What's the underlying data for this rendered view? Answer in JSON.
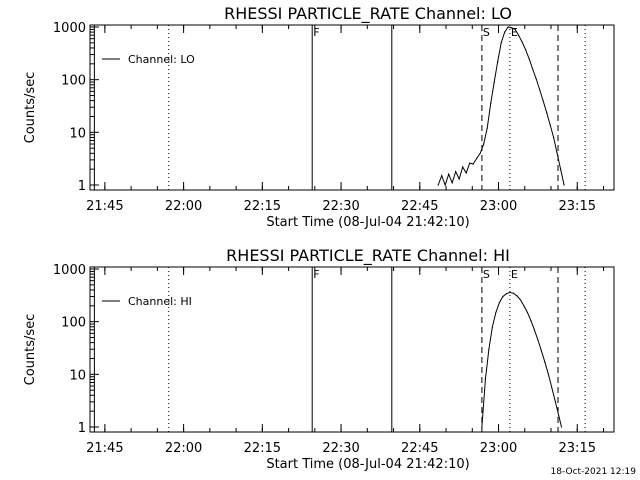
{
  "timestamp": "18-Oct-2021 12:19",
  "chart_data": [
    {
      "type": "line",
      "title": "RHESSI PARTICLE_RATE Channel: LO",
      "xlabel": "Start Time (08-Jul-04 21:42:10)",
      "ylabel": "Counts/sec",
      "yscale": "log",
      "ylim": [
        1,
        1000
      ],
      "xlim": [
        "21:42:10",
        "23:22:00"
      ],
      "xticks": [
        "21:45",
        "22:00",
        "22:15",
        "22:30",
        "22:45",
        "23:00",
        "23:15"
      ],
      "yticks": [
        "1",
        "10",
        "100",
        "1000"
      ],
      "legend": {
        "position": "top-left",
        "entries": [
          "Channel: LO"
        ]
      },
      "markers": [
        {
          "time": "21:43:00",
          "style": "solid",
          "label": ""
        },
        {
          "time": "21:57:10",
          "style": "dotted",
          "label": ""
        },
        {
          "time": "22:24:30",
          "style": "solid",
          "label": "F"
        },
        {
          "time": "22:39:40",
          "style": "solid",
          "label": ""
        },
        {
          "time": "22:56:50",
          "style": "dashed",
          "label": "S"
        },
        {
          "time": "23:02:10",
          "style": "dotted",
          "label": "E"
        },
        {
          "time": "23:11:20",
          "style": "dashed",
          "label": ""
        },
        {
          "time": "23:16:30",
          "style": "dotted",
          "label": ""
        }
      ],
      "series": [
        {
          "name": "Channel: LO",
          "x": [
            "22:48:30",
            "22:49:10",
            "22:49:50",
            "22:50:30",
            "22:51:10",
            "22:51:50",
            "22:52:30",
            "22:53:10",
            "22:53:50",
            "22:54:30",
            "22:55:10",
            "22:55:50",
            "22:56:30",
            "22:57:10",
            "22:57:50",
            "22:58:30",
            "22:59:10",
            "22:59:50",
            "23:00:30",
            "23:01:10",
            "23:01:50",
            "23:02:30",
            "23:03:10",
            "23:03:50",
            "23:04:30",
            "23:05:10",
            "23:05:50",
            "23:06:30",
            "23:07:10",
            "23:07:50",
            "23:08:30",
            "23:09:10",
            "23:09:50",
            "23:10:30",
            "23:11:10",
            "23:11:50",
            "23:12:30"
          ],
          "y": [
            1.0,
            1.5,
            1.0,
            1.6,
            1.1,
            1.8,
            1.3,
            2.2,
            1.7,
            2.6,
            2.5,
            3.2,
            4.0,
            6,
            12,
            35,
            90,
            220,
            500,
            800,
            1000,
            960,
            900,
            700,
            520,
            370,
            250,
            160,
            105,
            65,
            40,
            24,
            14,
            8,
            4,
            2,
            1
          ]
        }
      ]
    },
    {
      "type": "line",
      "title": "RHESSI PARTICLE_RATE Channel: HI",
      "xlabel": "Start Time (08-Jul-04 21:42:10)",
      "ylabel": "Counts/sec",
      "yscale": "log",
      "ylim": [
        1,
        1000
      ],
      "xlim": [
        "21:42:10",
        "23:22:00"
      ],
      "xticks": [
        "21:45",
        "22:00",
        "22:15",
        "22:30",
        "22:45",
        "23:00",
        "23:15"
      ],
      "yticks": [
        "1",
        "10",
        "100",
        "1000"
      ],
      "legend": {
        "position": "top-left",
        "entries": [
          "Channel: HI"
        ]
      },
      "markers": [
        {
          "time": "21:43:00",
          "style": "solid",
          "label": ""
        },
        {
          "time": "21:57:10",
          "style": "dotted",
          "label": ""
        },
        {
          "time": "22:24:30",
          "style": "solid",
          "label": "F"
        },
        {
          "time": "22:39:40",
          "style": "solid",
          "label": ""
        },
        {
          "time": "22:56:50",
          "style": "dashed",
          "label": "S"
        },
        {
          "time": "23:02:10",
          "style": "dotted",
          "label": "E"
        },
        {
          "time": "23:11:20",
          "style": "dashed",
          "label": ""
        },
        {
          "time": "23:16:30",
          "style": "dotted",
          "label": ""
        }
      ],
      "series": [
        {
          "name": "Channel: HI",
          "x": [
            "22:56:50",
            "22:57:30",
            "22:58:10",
            "22:58:50",
            "22:59:30",
            "23:00:10",
            "23:00:50",
            "23:01:30",
            "23:02:10",
            "23:02:50",
            "23:03:30",
            "23:04:10",
            "23:04:50",
            "23:05:30",
            "23:06:10",
            "23:06:50",
            "23:07:30",
            "23:08:10",
            "23:08:50",
            "23:09:30",
            "23:10:10",
            "23:10:50",
            "23:11:30",
            "23:12:00"
          ],
          "y": [
            1.0,
            8,
            30,
            80,
            150,
            230,
            300,
            340,
            360,
            345,
            310,
            260,
            200,
            150,
            105,
            70,
            45,
            28,
            17,
            10,
            5.5,
            3,
            1.6,
            1.0
          ]
        }
      ]
    }
  ]
}
